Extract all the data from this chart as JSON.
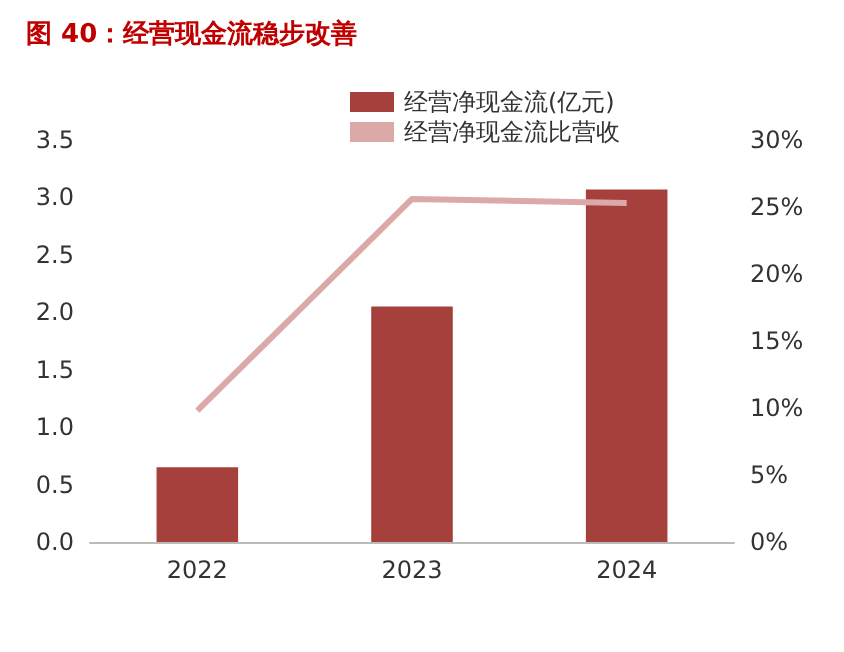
{
  "chart_data": {
    "type": "bar",
    "title": "图 40：经营现金流稳步改善",
    "categories": [
      "2022",
      "2023",
      "2024"
    ],
    "series": [
      {
        "name": "经营净现金流(亿元)",
        "color": "#a5403c",
        "values": [
          0.65,
          2.05,
          3.07
        ]
      },
      {
        "name": "经营净现金流比营收",
        "type": "line",
        "axis": "y2",
        "color": "#dba9a8",
        "marker": "none",
        "values": [
          9.8,
          25.6,
          25.3
        ]
      }
    ],
    "ylim": [
      0,
      3.5
    ],
    "yticks": [
      {
        "value": 0,
        "label": "0.0"
      },
      {
        "value": 0.5,
        "label": "0.5"
      },
      {
        "value": 1,
        "label": "1.0"
      },
      {
        "value": 1.5,
        "label": "1.5"
      },
      {
        "value": 2,
        "label": "2.0"
      },
      {
        "value": 2.5,
        "label": "2.5"
      },
      {
        "value": 3,
        "label": "3.0"
      },
      {
        "value": 3.5,
        "label": "3.5"
      }
    ],
    "y2lim": [
      0,
      30
    ],
    "y2ticks": [
      {
        "value": 0,
        "label": "0%"
      },
      {
        "value": 5,
        "label": "5%"
      },
      {
        "value": 10,
        "label": "10%"
      },
      {
        "value": 15,
        "label": "15%"
      },
      {
        "value": 20,
        "label": "20%"
      },
      {
        "value": 25,
        "label": "25%"
      },
      {
        "value": 30,
        "label": "30%"
      }
    ],
    "legend": "top",
    "grid": false
  }
}
